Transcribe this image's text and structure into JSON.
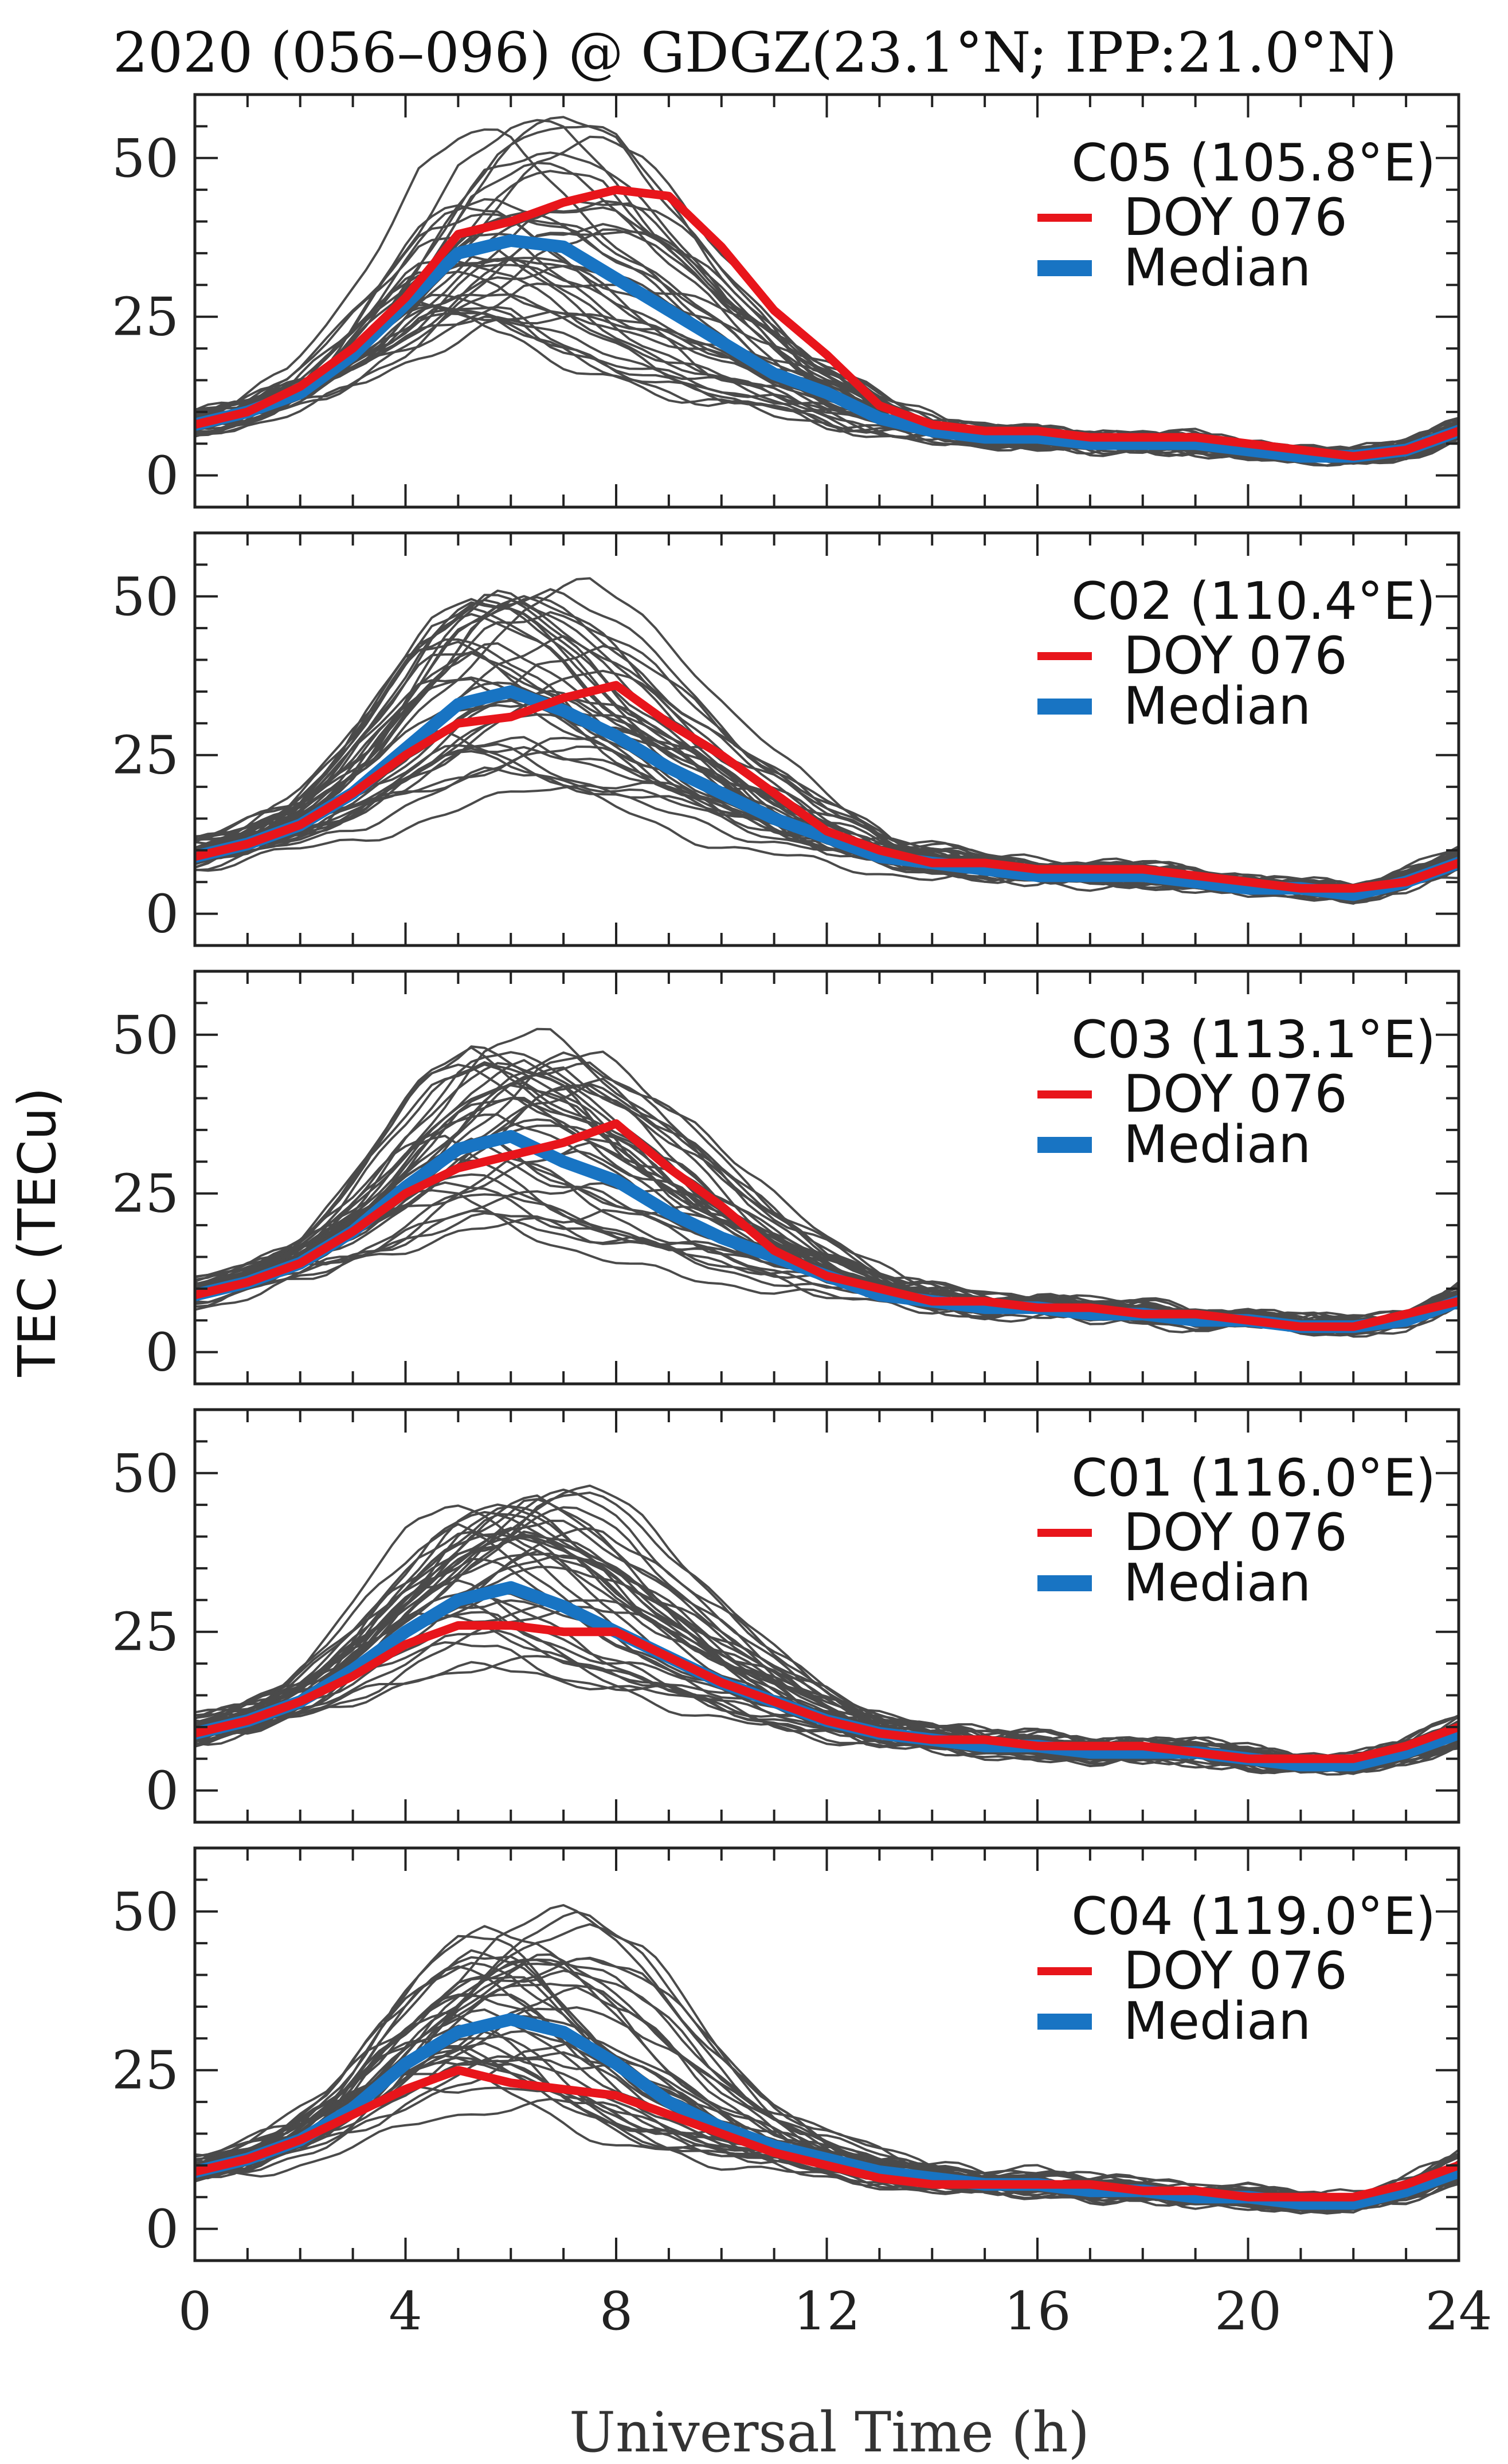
{
  "chart_data": {
    "type": "line",
    "title": "2020 (056–096) @ GDGZ(23.1°N; IPP:21.0°N)",
    "xlabel": "Universal Time (h)",
    "ylabel": "TEC (TECu)",
    "xlim": [
      0,
      24
    ],
    "ylim": [
      -5,
      60
    ],
    "x_ticks": [
      0,
      4,
      8,
      12,
      16,
      20,
      24
    ],
    "y_ticks": [
      0,
      25,
      50
    ],
    "grid": false,
    "legend": {
      "placement": "top-right",
      "items": [
        "DOY 076",
        "Median"
      ]
    },
    "colors": {
      "doy": "#e8151b",
      "median": "#1874c3",
      "days": "#4a4a4a"
    },
    "x": [
      0,
      1,
      2,
      3,
      4,
      5,
      6,
      7,
      8,
      9,
      10,
      11,
      12,
      13,
      14,
      15,
      16,
      17,
      18,
      19,
      20,
      21,
      22,
      23,
      24
    ],
    "panels": [
      {
        "satellite": "C05 (105.8°E)",
        "series": [
          {
            "name": "DOY 076",
            "values": [
              8,
              10,
              14,
              20,
              28,
              38,
              40,
              43,
              45,
              44,
              36,
              26,
              19,
              11,
              8,
              7,
              7,
              6,
              6,
              6,
              5,
              4,
              3,
              4,
              7
            ]
          },
          {
            "name": "Median",
            "values": [
              8,
              10,
              13,
              19,
              27,
              35,
              37,
              36,
              31,
              26,
              21,
              16,
              13,
              9,
              7,
              6,
              6,
              5,
              5,
              5,
              4,
              3,
              3,
              4,
              7
            ]
          }
        ]
      },
      {
        "satellite": "C02 (110.4°E)",
        "series": [
          {
            "name": "DOY 076",
            "values": [
              9,
              11,
              14,
              19,
              25,
              30,
              31,
              34,
              36,
              30,
              25,
              19,
              13,
              10,
              8,
              8,
              7,
              7,
              7,
              6,
              5,
              4,
              4,
              5,
              8
            ]
          },
          {
            "name": "Median",
            "values": [
              9,
              11,
              14,
              19,
              26,
              33,
              35,
              32,
              28,
              23,
              19,
              15,
              12,
              9,
              8,
              7,
              6,
              6,
              6,
              5,
              4,
              4,
              3,
              5,
              8
            ]
          }
        ]
      },
      {
        "satellite": "C03 (113.1°E)",
        "series": [
          {
            "name": "DOY 076",
            "values": [
              9,
              11,
              14,
              19,
              25,
              29,
              31,
              33,
              36,
              29,
              23,
              16,
              12,
              10,
              8,
              8,
              7,
              7,
              6,
              6,
              5,
              4,
              4,
              6,
              8
            ]
          },
          {
            "name": "Median",
            "values": [
              9,
              11,
              14,
              19,
              26,
              32,
              34,
              30,
              27,
              22,
              18,
              15,
              12,
              9,
              8,
              7,
              7,
              6,
              6,
              5,
              5,
              4,
              4,
              5,
              8
            ]
          }
        ]
      },
      {
        "satellite": "C01 (116.0°E)",
        "series": [
          {
            "name": "DOY 076",
            "values": [
              9,
              11,
              14,
              18,
              23,
              26,
              26,
              25,
              25,
              21,
              17,
              14,
              11,
              9,
              8,
              8,
              7,
              7,
              7,
              6,
              5,
              5,
              5,
              7,
              10
            ]
          },
          {
            "name": "Median",
            "values": [
              9,
              11,
              14,
              19,
              25,
              30,
              32,
              29,
              25,
              21,
              17,
              14,
              11,
              9,
              8,
              7,
              7,
              6,
              6,
              6,
              5,
              4,
              4,
              6,
              9
            ]
          }
        ]
      },
      {
        "satellite": "C04 (119.0°E)",
        "series": [
          {
            "name": "DOY 076",
            "values": [
              9,
              11,
              14,
              18,
              22,
              25,
              23,
              22,
              21,
              18,
              15,
              12,
              10,
              8,
              7,
              7,
              7,
              7,
              6,
              6,
              5,
              5,
              5,
              7,
              10
            ]
          },
          {
            "name": "Median",
            "values": [
              9,
              11,
              14,
              19,
              26,
              31,
              33,
              31,
              26,
              20,
              16,
              13,
              11,
              9,
              8,
              7,
              7,
              6,
              6,
              5,
              5,
              4,
              4,
              6,
              9
            ]
          }
        ]
      }
    ]
  }
}
